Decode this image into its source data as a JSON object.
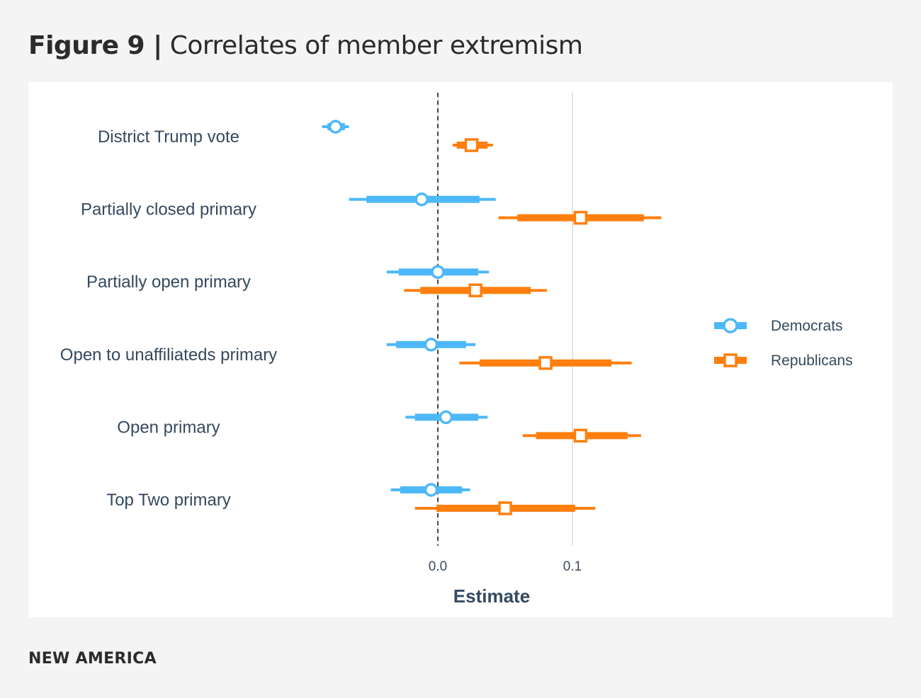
{
  "header": {
    "figure_label": "Figure 9 |",
    "title": "Correlates of member extremism"
  },
  "footer": {
    "brand": "NEW AMERICA"
  },
  "chart_data": {
    "type": "forest",
    "title": "Correlates of member extremism",
    "xlabel": "Estimate",
    "xlim": [
      -0.11,
      0.2
    ],
    "xticks": [
      0.0,
      0.1
    ],
    "xtick_labels": [
      "0.0",
      "0.1"
    ],
    "reference_line": 0.0,
    "legend_position": "right",
    "colors": {
      "Democrats": "#4db8f8",
      "Republicans": "#ff7f0e"
    },
    "categories": [
      "District Trump vote",
      "Partially closed primary",
      "Partially open primary",
      "Open to unaffiliateds primary",
      "Open primary",
      "Top Two primary"
    ],
    "series": [
      {
        "name": "Democrats",
        "marker": "circle",
        "estimate": [
          -0.076,
          -0.012,
          0.0,
          -0.005,
          0.006,
          -0.005
        ],
        "inner": [
          [
            -0.082,
            -0.069
          ],
          [
            -0.053,
            0.031
          ],
          [
            -0.029,
            0.03
          ],
          [
            -0.031,
            0.021
          ],
          [
            -0.017,
            0.03
          ],
          [
            -0.028,
            0.018
          ]
        ],
        "outer": [
          [
            -0.086,
            -0.066
          ],
          [
            -0.066,
            0.043
          ],
          [
            -0.038,
            0.038
          ],
          [
            -0.038,
            0.028
          ],
          [
            -0.024,
            0.037
          ],
          [
            -0.035,
            0.024
          ]
        ]
      },
      {
        "name": "Republicans",
        "marker": "square",
        "estimate": [
          0.025,
          0.106,
          0.028,
          0.08,
          0.106,
          0.05
        ],
        "inner": [
          [
            0.014,
            0.037
          ],
          [
            0.059,
            0.153
          ],
          [
            -0.013,
            0.069
          ],
          [
            0.031,
            0.129
          ],
          [
            0.073,
            0.141
          ],
          [
            -0.001,
            0.102
          ]
        ],
        "outer": [
          [
            0.011,
            0.041
          ],
          [
            0.045,
            0.166
          ],
          [
            -0.025,
            0.081
          ],
          [
            0.016,
            0.144
          ],
          [
            0.063,
            0.151
          ],
          [
            -0.017,
            0.117
          ]
        ]
      }
    ]
  }
}
